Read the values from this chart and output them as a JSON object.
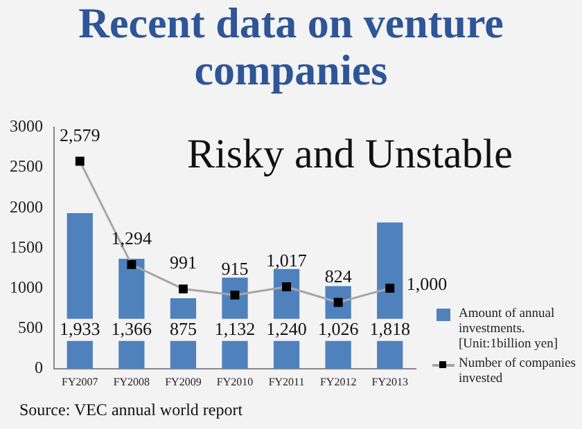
{
  "chart_data": {
    "type": "bar",
    "title": "Recent data on venture companies",
    "categories": [
      "FY2007",
      "FY2008",
      "FY2009",
      "FY2010",
      "FY2011",
      "FY2012",
      "FY2013"
    ],
    "series": [
      {
        "name": "Amount of annual investments. [Unit:1billion yen]",
        "color": "#4f81bd",
        "values": [
          1933,
          1366,
          875,
          1132,
          1240,
          1026,
          1818
        ],
        "value_labels": [
          "1,933",
          "1,366",
          "875",
          "1,132",
          "1,240",
          "1,026",
          "1,818"
        ]
      },
      {
        "name": "Number of companies invested",
        "type": "line",
        "color": "#a6a6a6",
        "marker": "square",
        "values": [
          2579,
          1294,
          991,
          915,
          1017,
          824,
          1000
        ],
        "value_labels": [
          "2,579",
          "1,294",
          "991",
          "915",
          "1,017",
          "824",
          "1,000"
        ]
      }
    ],
    "ylim": [
      0,
      3000
    ],
    "yticks": [
      0,
      500,
      1000,
      1500,
      2000,
      2500,
      3000
    ],
    "grid": false,
    "legend": "right",
    "annotations": [
      "Risky and Unstable",
      "Source: VEC annual world report"
    ]
  }
}
